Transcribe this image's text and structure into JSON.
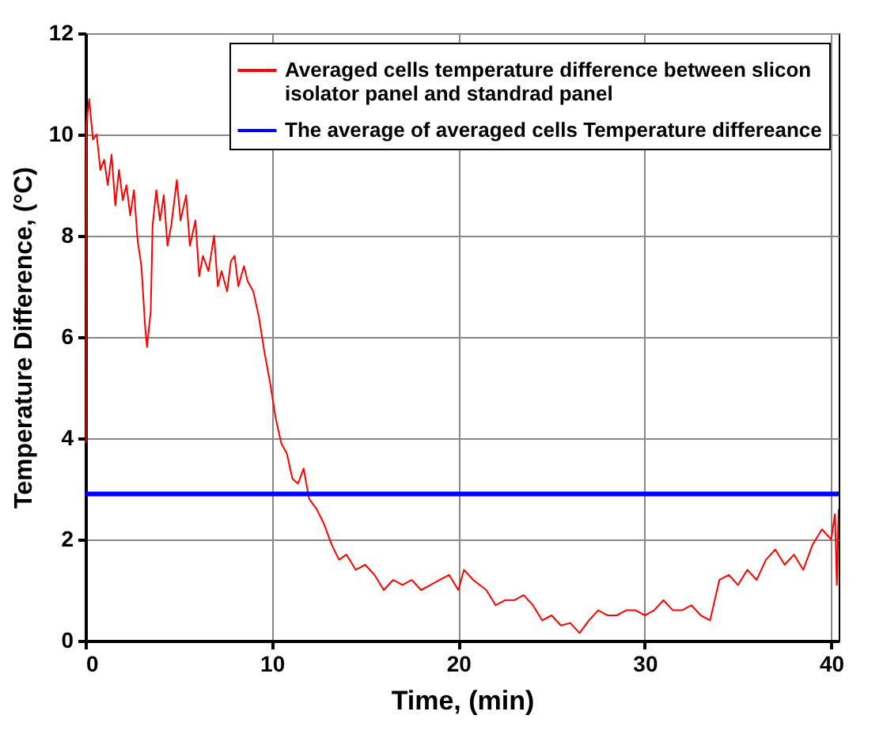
{
  "chart_data": {
    "type": "line",
    "xlabel": "Time, (min)",
    "ylabel": "Temperature Difference, (°C)",
    "xlim": [
      0,
      40.4
    ],
    "ylim": [
      0,
      12
    ],
    "xticks": [
      0,
      10,
      20,
      30,
      40
    ],
    "yticks": [
      0,
      2,
      4,
      6,
      8,
      10,
      12
    ],
    "grid": true,
    "legend": "top right",
    "series": [
      {
        "name": "Averaged cells temperature difference between slicon isolator panel and standrad panel",
        "color": "#ff0000",
        "x": [
          0,
          0.05,
          0.2,
          0.4,
          0.6,
          0.8,
          1.0,
          1.2,
          1.4,
          1.6,
          1.8,
          2.0,
          2.2,
          2.4,
          2.6,
          2.8,
          3.0,
          3.2,
          3.3,
          3.5,
          3.6,
          3.8,
          4.0,
          4.2,
          4.4,
          4.6,
          4.9,
          5.1,
          5.4,
          5.6,
          5.9,
          6.1,
          6.3,
          6.6,
          6.9,
          7.1,
          7.3,
          7.6,
          7.8,
          8.0,
          8.2,
          8.5,
          8.7,
          9.0,
          9.3,
          9.6,
          9.9,
          10.2,
          10.5,
          10.8,
          11.1,
          11.4,
          11.7,
          12.0,
          12.4,
          12.8,
          13.2,
          13.6,
          14.0,
          14.5,
          15.0,
          15.5,
          16,
          16.5,
          17,
          17.5,
          18,
          18.5,
          19,
          19.5,
          20,
          20.3,
          20.8,
          21.5,
          22,
          22.5,
          23,
          23.5,
          24,
          24.5,
          25,
          25.5,
          26,
          26.5,
          27,
          27.5,
          28,
          28.5,
          29,
          29.5,
          30,
          30.5,
          31,
          31.5,
          32,
          32.5,
          33,
          33.5,
          34,
          34.5,
          35,
          35.5,
          36,
          36.5,
          37,
          37.5,
          38,
          38.5,
          39,
          39.5,
          40,
          40.2,
          40.3,
          40.4
        ],
        "values": [
          3.9,
          10.2,
          10.7,
          9.9,
          10.0,
          9.3,
          9.5,
          9.0,
          9.6,
          8.6,
          9.3,
          8.7,
          9.0,
          8.4,
          8.9,
          7.9,
          7.4,
          6.2,
          5.8,
          6.5,
          8.2,
          8.9,
          8.3,
          8.8,
          7.8,
          8.2,
          9.1,
          8.3,
          8.8,
          7.8,
          8.3,
          7.2,
          7.6,
          7.3,
          8.0,
          7.0,
          7.3,
          6.9,
          7.5,
          7.6,
          7.0,
          7.4,
          7.1,
          6.9,
          6.4,
          5.7,
          5.1,
          4.4,
          3.9,
          3.7,
          3.2,
          3.1,
          3.4,
          2.8,
          2.6,
          2.3,
          1.9,
          1.6,
          1.7,
          1.4,
          1.5,
          1.3,
          1.0,
          1.2,
          1.1,
          1.2,
          1.0,
          1.1,
          1.2,
          1.3,
          1.0,
          1.4,
          1.2,
          1.0,
          0.7,
          0.8,
          0.8,
          0.9,
          0.7,
          0.4,
          0.5,
          0.3,
          0.35,
          0.15,
          0.4,
          0.6,
          0.5,
          0.5,
          0.6,
          0.6,
          0.5,
          0.6,
          0.8,
          0.6,
          0.6,
          0.7,
          0.5,
          0.4,
          1.2,
          1.3,
          1.1,
          1.4,
          1.2,
          1.6,
          1.8,
          1.5,
          1.7,
          1.4,
          1.9,
          2.2,
          2.0,
          2.5,
          1.1,
          2.6
        ]
      }
    ],
    "ref_lines": [
      {
        "axis": "y",
        "value": 2.9,
        "label": "The average of averaged cells Temperature differeance",
        "color": "#0000ff"
      }
    ]
  }
}
